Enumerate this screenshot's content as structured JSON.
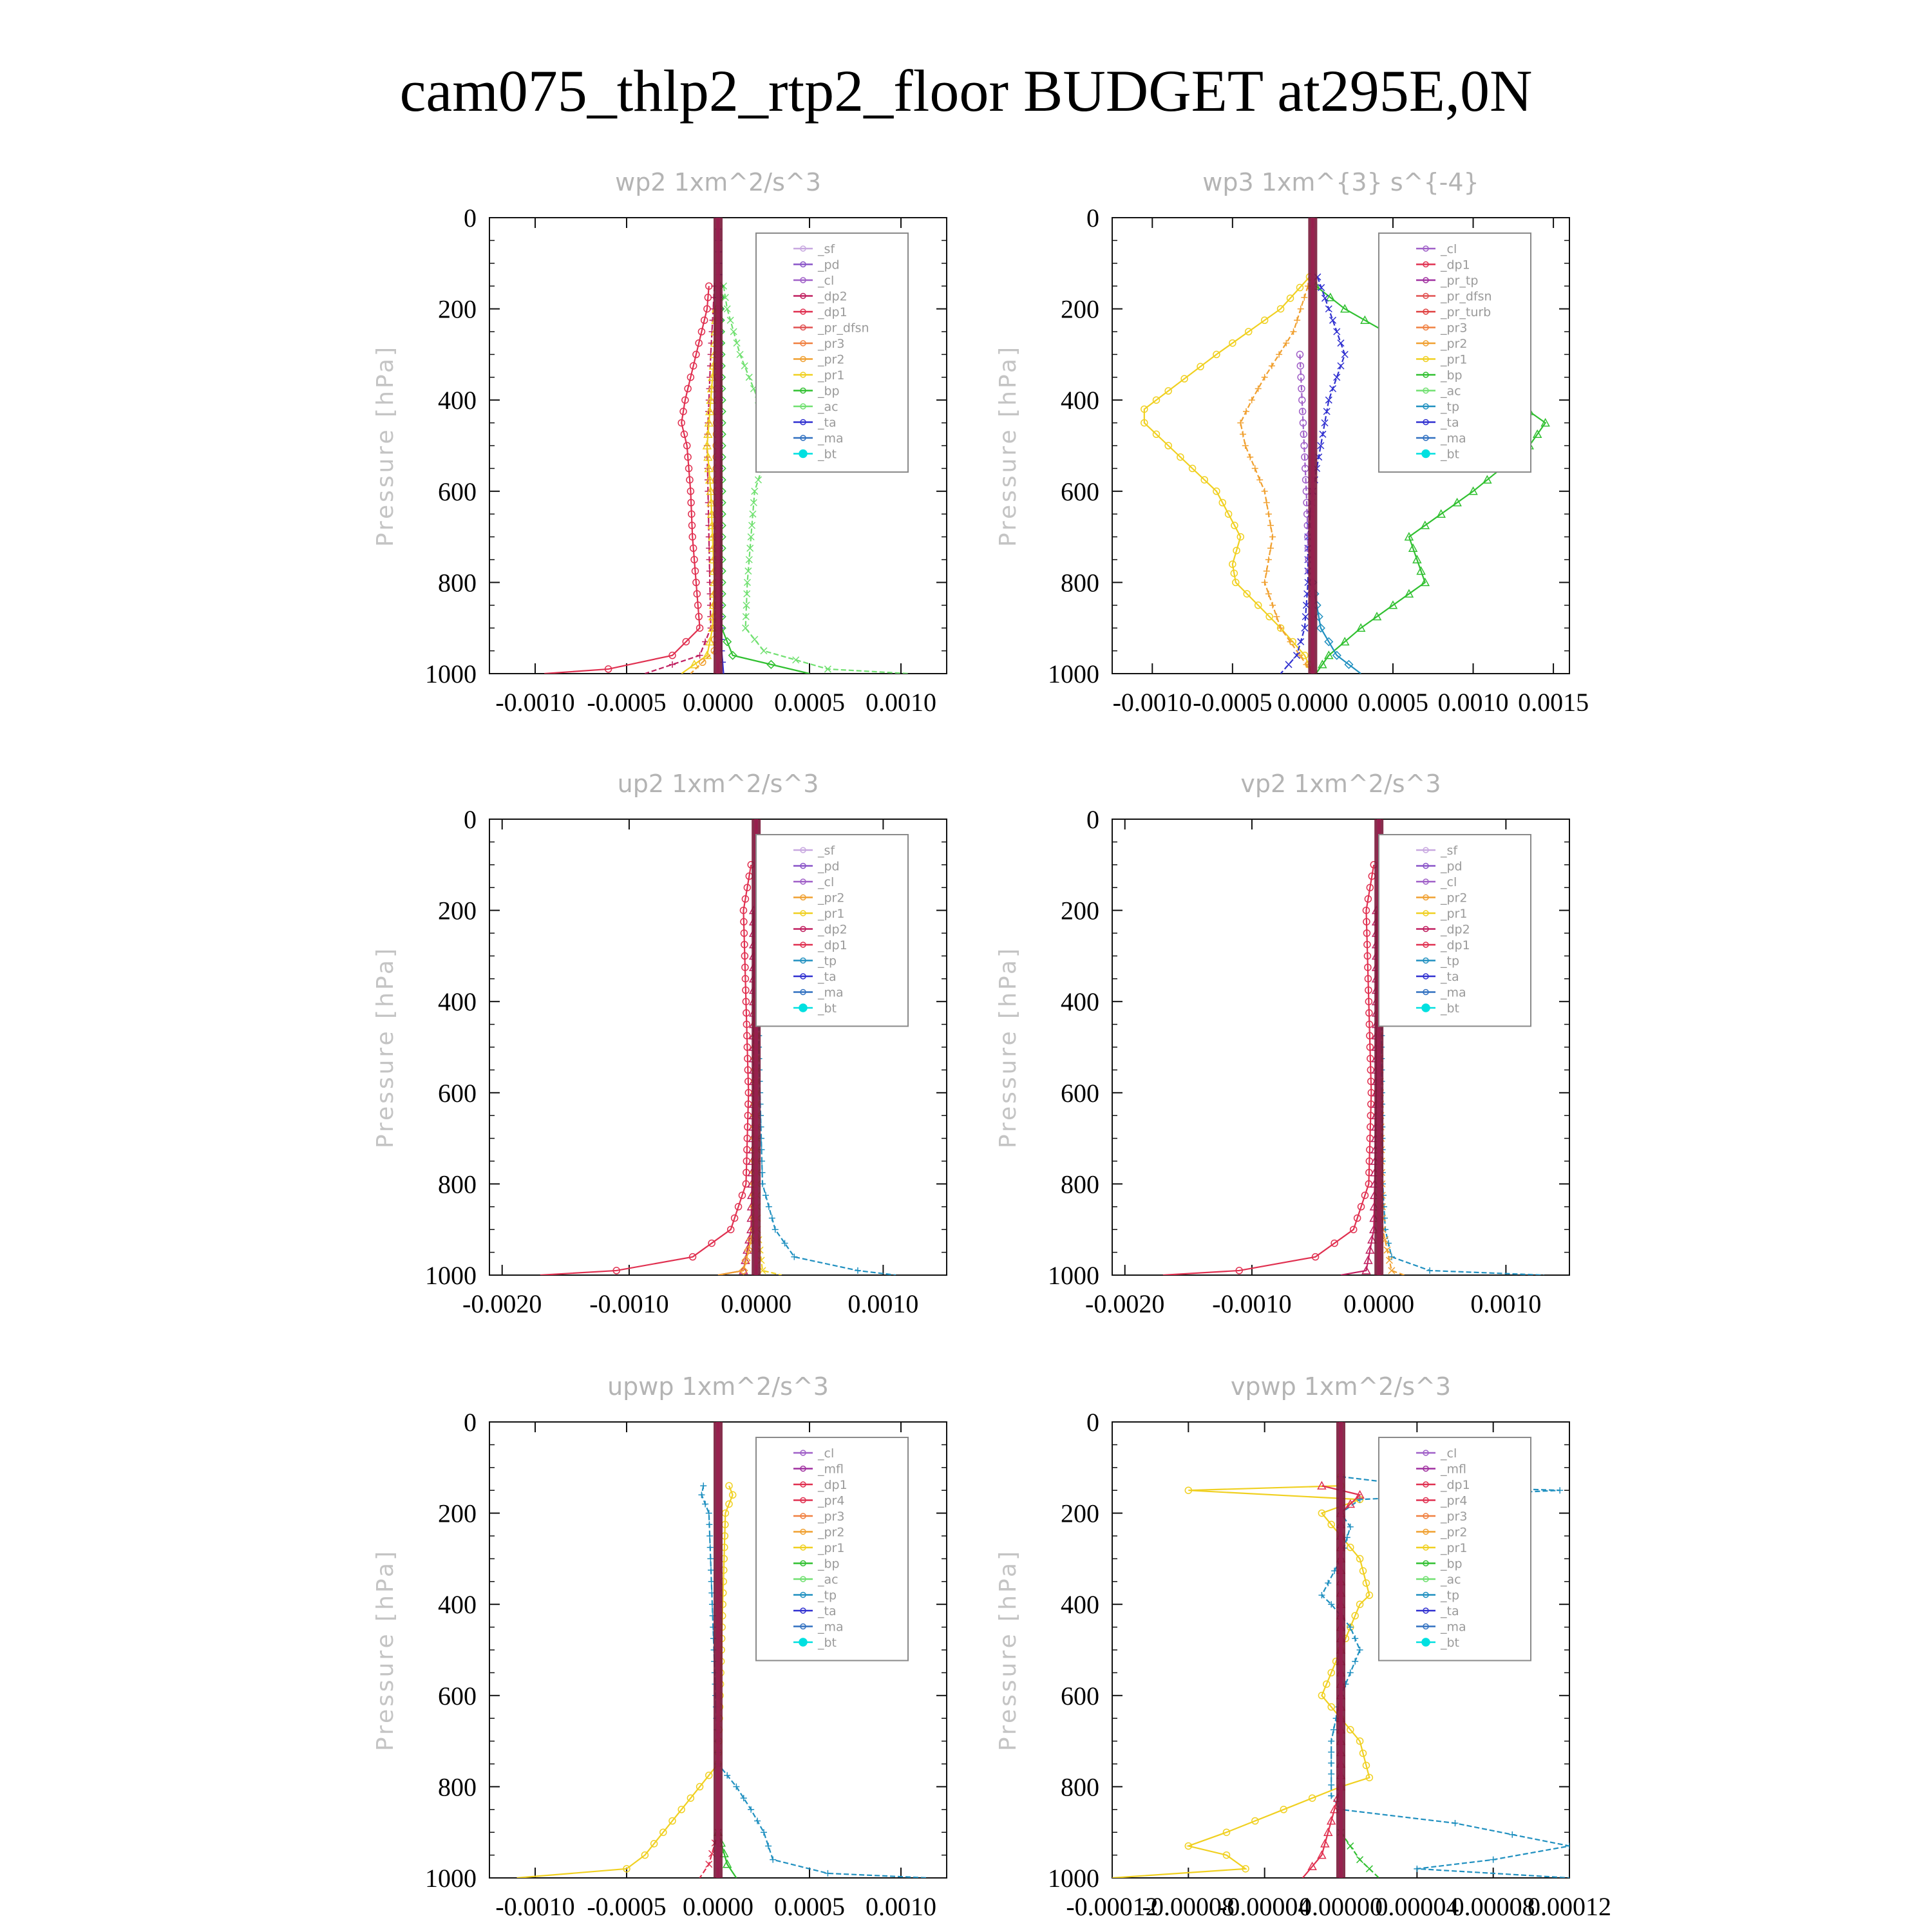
{
  "title": "cam075_thlp2_rtp2_floor  BUDGET at295E,0N",
  "y_axis": {
    "label": "Pressure [hPa]",
    "ticks": [
      0,
      200,
      400,
      600,
      800,
      1000
    ],
    "range": [
      0,
      1000
    ],
    "inverted": true
  },
  "series_colors": {
    "_sf": "#c8a8e0",
    "_pd": "#8a55c8",
    "_cl": "#a060c8",
    "_dp2": "#c02060",
    "_dp1": "#e03050",
    "_pr_dfsn": "#e05050",
    "_pr3": "#f08040",
    "_pr2": "#f0a030",
    "_pr1": "#f0d020",
    "_bp": "#30c030",
    "_ac": "#70e070",
    "_ta": "#3030d0",
    "_ma": "#3070c0",
    "_bt": "#00e0e0",
    "_tp": "#2090c0",
    "_pr_tp": "#a030a0",
    "_pr_turb": "#e04040",
    "_mfl": "#a030a0",
    "_pr4": "#e03050"
  },
  "chart_data": [
    {
      "type": "line",
      "title": "wp2   1xm^2/s^3",
      "xlabel": "",
      "ylabel": "Pressure [hPa]",
      "xlim": [
        -0.00125,
        0.00125
      ],
      "ylim": [
        1000,
        0
      ],
      "xticks": [
        -0.001,
        -0.0005,
        0.0,
        0.0005,
        0.001
      ],
      "xtick_labels": [
        "-0.0010",
        "-0.0005",
        "0.0000",
        "0.0005",
        "0.0010"
      ],
      "legend": [
        "_sf",
        "_pd",
        "_cl",
        "_dp2",
        "_dp1",
        "_pr_dfsn",
        "_pr3",
        "_pr2",
        "_pr1",
        "_bp",
        "_ac",
        "_ta",
        "_ma",
        "_bt"
      ],
      "legend_position": "top-right",
      "series": [
        {
          "name": "_dp1",
          "y": [
            150,
            200,
            300,
            400,
            450,
            500,
            600,
            700,
            800,
            900,
            960,
            990,
            1000
          ],
          "x": [
            -5e-05,
            -6e-05,
            -0.00012,
            -0.00018,
            -0.0002,
            -0.00017,
            -0.00015,
            -0.00014,
            -0.00012,
            -0.0001,
            -0.00025,
            -0.0006,
            -0.00095
          ]
        },
        {
          "name": "_dp2",
          "y": [
            150,
            300,
            500,
            700,
            900,
            960,
            1000
          ],
          "x": [
            -2e-05,
            -4e-05,
            -6e-05,
            -5e-05,
            -4e-05,
            -0.0001,
            -0.0004
          ]
        },
        {
          "name": "_pr1",
          "y": [
            200,
            300,
            400,
            500,
            600,
            700,
            800,
            900,
            960,
            1000
          ],
          "x": [
            -1e-05,
            -2e-05,
            -4e-05,
            -6e-05,
            -4e-05,
            -3e-05,
            -2e-05,
            -3e-05,
            -6e-05,
            -0.0002
          ]
        },
        {
          "name": "_ac",
          "y": [
            150,
            200,
            300,
            400,
            450,
            500,
            600,
            700,
            800,
            900,
            950,
            990,
            1000
          ],
          "x": [
            3e-05,
            5e-05,
            0.00012,
            0.00022,
            0.0003,
            0.00028,
            0.0002,
            0.00018,
            0.00016,
            0.00015,
            0.00025,
            0.0006,
            0.00105
          ]
        },
        {
          "name": "_bp",
          "y": [
            150,
            400,
            700,
            900,
            960,
            1000
          ],
          "x": [
            1e-05,
            2e-05,
            2e-05,
            2e-05,
            8e-05,
            0.0005
          ]
        },
        {
          "name": "_pr2",
          "y": [
            200,
            500,
            800,
            950,
            1000
          ],
          "x": [
            0.0,
            -1e-05,
            -1e-05,
            -2e-05,
            -0.00015
          ]
        },
        {
          "name": "_ta",
          "y": [
            0,
            200,
            400,
            600,
            800,
            950,
            1000
          ],
          "x": [
            0.0,
            1e-05,
            1e-05,
            1e-05,
            1e-05,
            2e-05,
            3e-05
          ]
        },
        {
          "name": "_bt",
          "y": [
            0,
            1000
          ],
          "x": [
            0.0,
            0.0
          ]
        },
        {
          "name": "_pd",
          "y": [
            0,
            1000
          ],
          "x": [
            0.0,
            0.0
          ]
        }
      ]
    },
    {
      "type": "line",
      "title": "wp3   1xm^{3} s^{-4}",
      "xlabel": "",
      "ylabel": "Pressure [hPa]",
      "xlim": [
        -0.00125,
        0.0016
      ],
      "ylim": [
        1000,
        0
      ],
      "xticks": [
        -0.001,
        -0.0005,
        0.0,
        0.0005,
        0.001,
        0.0015
      ],
      "xtick_labels": [
        "-0.0010",
        "-0.0005",
        "0.0000",
        "0.0005",
        "0.0010",
        "0.0015"
      ],
      "legend": [
        "_cl",
        "_dp1",
        "_pr_tp",
        "_pr_dfsn",
        "_pr_turb",
        "_pr3",
        "_pr2",
        "_pr1",
        "_bp",
        "_ac",
        "_tp",
        "_ta",
        "_ma",
        "_bt"
      ],
      "legend_position": "top-right",
      "series": [
        {
          "name": "_pr1",
          "y": [
            130,
            200,
            300,
            380,
            420,
            450,
            500,
            600,
            700,
            760,
            800,
            900,
            960,
            1000
          ],
          "x": [
            -2e-05,
            -0.0002,
            -0.0006,
            -0.0009,
            -0.00105,
            -0.00105,
            -0.0009,
            -0.0006,
            -0.00045,
            -0.0005,
            -0.00048,
            -0.0002,
            -5e-05,
            0.0
          ]
        },
        {
          "name": "_pr2",
          "y": [
            150,
            250,
            350,
            400,
            450,
            500,
            600,
            700,
            800,
            900,
            960,
            1000
          ],
          "x": [
            -3e-05,
            -0.00012,
            -0.0003,
            -0.00038,
            -0.00045,
            -0.00042,
            -0.0003,
            -0.00025,
            -0.0003,
            -0.0002,
            -8e-05,
            0.0
          ]
        },
        {
          "name": "_bp",
          "y": [
            150,
            200,
            300,
            400,
            450,
            500,
            600,
            700,
            800,
            900,
            960,
            1000
          ],
          "x": [
            2e-05,
            0.0002,
            0.0007,
            0.00125,
            0.00145,
            0.00135,
            0.001,
            0.0006,
            0.0007,
            0.0003,
            0.0001,
            2e-05
          ]
        },
        {
          "name": "_ta",
          "y": [
            130,
            200,
            300,
            400,
            500,
            600,
            700,
            800,
            900,
            960,
            1000
          ],
          "x": [
            3e-05,
            0.0001,
            0.0002,
            0.0001,
            5e-05,
            0.0,
            -3e-05,
            -3e-05,
            -5e-05,
            -0.0001,
            -0.0002
          ]
        },
        {
          "name": "_tp",
          "y": [
            800,
            900,
            960,
            1000
          ],
          "x": [
            0.0,
            5e-05,
            0.00015,
            0.0003
          ]
        },
        {
          "name": "_cl",
          "y": [
            300,
            450,
            600,
            800
          ],
          "x": [
            -8e-05,
            -6e-05,
            -4e-05,
            -2e-05
          ]
        },
        {
          "name": "_bt",
          "y": [
            0,
            1000
          ],
          "x": [
            0.0,
            0.0
          ]
        },
        {
          "name": "_pr_tp",
          "y": [
            0,
            1000
          ],
          "x": [
            0.0,
            0.0
          ]
        }
      ]
    },
    {
      "type": "line",
      "title": "up2   1xm^2/s^3",
      "xlabel": "",
      "ylabel": "Pressure [hPa]",
      "xlim": [
        -0.0021,
        0.0015
      ],
      "ylim": [
        1000,
        0
      ],
      "xticks": [
        -0.002,
        -0.001,
        0.0,
        0.001
      ],
      "xtick_labels": [
        "-0.0020",
        "-0.0010",
        "0.0000",
        "0.0010"
      ],
      "legend": [
        "_sf",
        "_pd",
        "_cl",
        "_pr2",
        "_pr1",
        "_dp2",
        "_dp1",
        "_tp",
        "_ta",
        "_ma",
        "_bt"
      ],
      "legend_position": "top-right",
      "series": [
        {
          "name": "_dp1",
          "y": [
            100,
            200,
            400,
            600,
            800,
            900,
            960,
            990,
            1000
          ],
          "x": [
            -4e-05,
            -0.0001,
            -8e-05,
            -6e-05,
            -8e-05,
            -0.0002,
            -0.0005,
            -0.0011,
            -0.0017
          ]
        },
        {
          "name": "_tp",
          "y": [
            100,
            150,
            200,
            300,
            500,
            800,
            900,
            960,
            990,
            1000
          ],
          "x": [
            5e-05,
            0.0001,
            8e-05,
            3e-05,
            2e-05,
            5e-05,
            0.00015,
            0.0003,
            0.0008,
            0.0011
          ]
        },
        {
          "name": "_dp2",
          "y": [
            200,
            600,
            900,
            990,
            1000
          ],
          "x": [
            -2e-05,
            -2e-05,
            -4e-05,
            -0.0001,
            -0.0003
          ]
        },
        {
          "name": "_pr1",
          "y": [
            400,
            900,
            990,
            1000
          ],
          "x": [
            0.0,
            1e-05,
            5e-05,
            0.0002
          ]
        },
        {
          "name": "_pr2",
          "y": [
            400,
            900,
            990,
            1000
          ],
          "x": [
            0.0,
            -2e-05,
            -0.0001,
            -0.0003
          ]
        },
        {
          "name": "_bt",
          "y": [
            0,
            1000
          ],
          "x": [
            0.0,
            0.0
          ]
        },
        {
          "name": "_sf",
          "y": [
            0,
            1000
          ],
          "x": [
            0.0,
            0.0
          ]
        }
      ]
    },
    {
      "type": "line",
      "title": "vp2   1xm^2/s^3",
      "xlabel": "",
      "ylabel": "Pressure [hPa]",
      "xlim": [
        -0.0021,
        0.0015
      ],
      "ylim": [
        1000,
        0
      ],
      "xticks": [
        -0.002,
        -0.001,
        0.0,
        0.001
      ],
      "xtick_labels": [
        "-0.0020",
        "-0.0010",
        "0.0000",
        "0.0010"
      ],
      "legend": [
        "_sf",
        "_pd",
        "_cl",
        "_pr2",
        "_pr1",
        "_dp2",
        "_dp1",
        "_tp",
        "_ta",
        "_ma",
        "_bt"
      ],
      "legend_position": "top-right",
      "series": [
        {
          "name": "_dp1",
          "y": [
            100,
            200,
            400,
            600,
            800,
            900,
            960,
            990,
            1000
          ],
          "x": [
            -4e-05,
            -0.0001,
            -8e-05,
            -6e-05,
            -8e-05,
            -0.0002,
            -0.0005,
            -0.0011,
            -0.0017
          ]
        },
        {
          "name": "_tp",
          "y": [
            100,
            150,
            200,
            300,
            500,
            800,
            900,
            960,
            990,
            1000
          ],
          "x": [
            5e-05,
            0.0001,
            6e-05,
            3e-05,
            2e-05,
            3e-05,
            5e-05,
            0.0001,
            0.0004,
            0.0013
          ]
        },
        {
          "name": "_dp2",
          "y": [
            200,
            600,
            900,
            990,
            1000
          ],
          "x": [
            -2e-05,
            -2e-05,
            -4e-05,
            -0.0001,
            -0.0003
          ]
        },
        {
          "name": "_pr2",
          "y": [
            400,
            900,
            990,
            1000
          ],
          "x": [
            0.0,
            3e-05,
            0.0001,
            0.0002
          ]
        },
        {
          "name": "_bt",
          "y": [
            0,
            1000
          ],
          "x": [
            0.0,
            0.0
          ]
        },
        {
          "name": "_sf",
          "y": [
            0,
            1000
          ],
          "x": [
            0.0,
            0.0
          ]
        }
      ]
    },
    {
      "type": "line",
      "title": "upwp   1xm^2/s^3",
      "xlabel": "",
      "ylabel": "Pressure [hPa]",
      "xlim": [
        -0.00125,
        0.00125
      ],
      "ylim": [
        1000,
        0
      ],
      "xticks": [
        -0.001,
        -0.0005,
        0.0,
        0.0005,
        0.001
      ],
      "xtick_labels": [
        "-0.0010",
        "-0.0005",
        "0.0000",
        "0.0005",
        "0.0010"
      ],
      "legend": [
        "_cl",
        "_mfl",
        "_dp1",
        "_pr4",
        "_pr3",
        "_pr2",
        "_pr1",
        "_bp",
        "_ac",
        "_tp",
        "_ta",
        "_ma",
        "_bt"
      ],
      "legend_position": "top-right",
      "series": [
        {
          "name": "_pr1",
          "y": [
            140,
            160,
            200,
            750,
            800,
            850,
            900,
            950,
            980,
            1000
          ],
          "x": [
            6e-05,
            8e-05,
            4e-05,
            0.0,
            -0.0001,
            -0.0002,
            -0.0003,
            -0.0004,
            -0.0005,
            -0.0011
          ]
        },
        {
          "name": "_tp",
          "y": [
            140,
            160,
            200,
            750,
            800,
            850,
            900,
            960,
            990,
            1000
          ],
          "x": [
            -8e-05,
            -9e-05,
            -5e-05,
            0.0,
            0.0001,
            0.00018,
            0.00025,
            0.0003,
            0.0006,
            0.00115
          ]
        },
        {
          "name": "_bp",
          "y": [
            900,
            970,
            1000
          ],
          "x": [
            0.0,
            5e-05,
            0.0001
          ]
        },
        {
          "name": "_dp1",
          "y": [
            900,
            970,
            1000
          ],
          "x": [
            0.0,
            -5e-05,
            -0.0001
          ]
        },
        {
          "name": "_bt",
          "y": [
            0,
            1000
          ],
          "x": [
            0.0,
            0.0
          ]
        },
        {
          "name": "_mfl",
          "y": [
            0,
            1000
          ],
          "x": [
            0.0,
            0.0
          ]
        }
      ]
    },
    {
      "type": "line",
      "title": "vpwp   1xm^2/s^3",
      "xlabel": "",
      "ylabel": "Pressure [hPa]",
      "xlim": [
        -0.00012,
        0.00012
      ],
      "ylim": [
        1000,
        0
      ],
      "xticks": [
        -0.0001,
        -8e-05,
        -6e-05,
        -4e-05,
        -2e-05,
        0.0,
        2e-05,
        4e-05,
        6e-05,
        8e-05,
        0.0001
      ],
      "xtick_labels": [
        "-0.00012",
        "-0.00008",
        "-0.00004",
        "0.00000",
        "0.00004",
        "0.00008",
        "0.00012"
      ],
      "xtick_values": [
        -0.00012,
        -8e-05,
        -4e-05,
        0.0,
        4e-05,
        8e-05,
        0.00012
      ],
      "legend": [
        "_cl",
        "_mfl",
        "_dp1",
        "_pr4",
        "_pr3",
        "_pr2",
        "_pr1",
        "_bp",
        "_ac",
        "_tp",
        "_ta",
        "_ma",
        "_bt"
      ],
      "legend_position": "top-right",
      "series": [
        {
          "name": "_pr1",
          "y": [
            120,
            140,
            150,
            170,
            200,
            300,
            380,
            400,
            500,
            600,
            700,
            780,
            800,
            850,
            900,
            930,
            950,
            980,
            1000
          ],
          "x": [
            0.0,
            0.0,
            -8e-05,
            1e-05,
            -1e-05,
            1e-05,
            1.5e-05,
            1e-05,
            0.0,
            -1e-05,
            1e-05,
            1.5e-05,
            0.0,
            -3e-05,
            -6e-05,
            -8e-05,
            -6e-05,
            -5e-05,
            -0.00012
          ]
        },
        {
          "name": "_tp",
          "y": [
            120,
            140,
            150,
            170,
            200,
            230,
            300,
            380,
            400,
            450,
            500,
            600,
            700,
            820,
            850,
            880,
            930,
            960,
            980,
            1000
          ],
          "x": [
            0.0,
            4e-05,
            0.000115,
            1e-05,
            0.0,
            5e-06,
            0.0,
            -1e-05,
            -5e-06,
            5e-06,
            1e-05,
            0.0,
            -5e-06,
            -5e-06,
            0.0,
            6e-05,
            0.00012,
            8e-05,
            4e-05,
            0.00012
          ]
        },
        {
          "name": "_dp1",
          "y": [
            140,
            160,
            200,
            400,
            800,
            950,
            1000
          ],
          "x": [
            -1e-05,
            1e-05,
            0.0,
            0.0,
            0.0,
            -1e-05,
            -2e-05
          ]
        },
        {
          "name": "_bp",
          "y": [
            900,
            960,
            1000
          ],
          "x": [
            0.0,
            1e-05,
            2e-05
          ]
        },
        {
          "name": "_bt",
          "y": [
            0,
            1000
          ],
          "x": [
            0.0,
            0.0
          ]
        },
        {
          "name": "_mfl",
          "y": [
            0,
            1000
          ],
          "x": [
            0.0,
            0.0
          ]
        }
      ]
    }
  ]
}
